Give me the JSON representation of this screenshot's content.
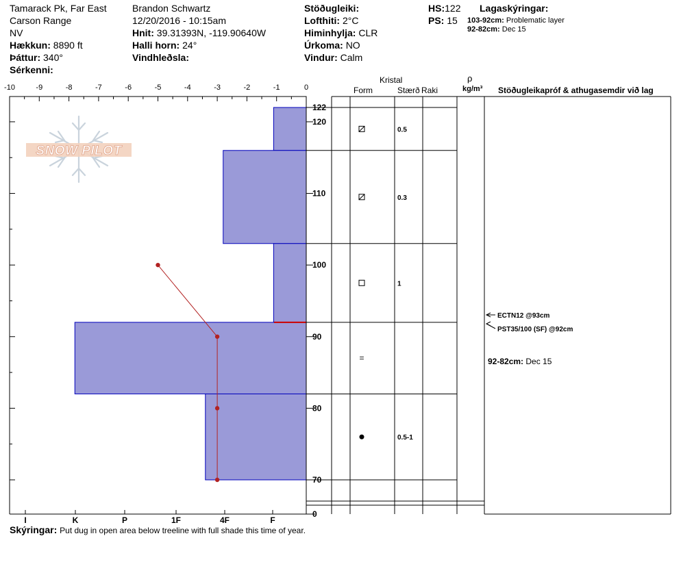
{
  "header": {
    "location": "Tamarack Pk, Far East",
    "range": "Carson Range",
    "state": "NV",
    "elevation_label": "Hækkun:",
    "elevation_value": "8890 ft",
    "aspect_label": "Þáttur:",
    "aspect_value": "340°",
    "features_label": "Sérkenni:",
    "observer": "Brandon Schwartz",
    "datetime": "12/20/2016 - 10:15am",
    "coords_label": "Hnit:",
    "coords_value": "39.31393N, -119.90640W",
    "slope_label": "Halli horn:",
    "slope_value": "24°",
    "wind_loading_label": "Vindhleðsla:",
    "stability_label": "Stöðugleiki:",
    "air_temp_label": "Lofthiti:",
    "air_temp_value": "2°C",
    "sky_label": "Himinhylja:",
    "sky_value": "CLR",
    "precip_label": "Úrkoma:",
    "precip_value": "NO",
    "wind_label": "Vindur:",
    "wind_value": "Calm",
    "hs_label": "HS:",
    "hs_value": "122",
    "ps_label": "PS:",
    "ps_value": "15",
    "layer_notes_title": "Lagaskýringar:",
    "layer_notes": [
      {
        "range": "103-92cm:",
        "text": "Problematic layer"
      },
      {
        "range": "92-82cm:",
        "text": "Dec 15"
      }
    ]
  },
  "logo_text": "SNOW PILOT",
  "table_headers": {
    "crystal": "Kristal",
    "form": "Form",
    "size": "Stærð",
    "moisture": "Raki",
    "rho": "ρ",
    "density_unit": "kg/m³",
    "tests": "Stöðugleikapróf & athugasemdir við lag"
  },
  "comment_block": {
    "range": "92-82cm:",
    "text": "Dec 15"
  },
  "footer": {
    "notes_label": "Skýringar:",
    "notes_text": "Put dug in open area below treeline with full shade this time of year."
  },
  "colors": {
    "hardness_fill": "#9a9ad8",
    "hardness_stroke": "#0000bb",
    "temp_line": "#b22222",
    "grid": "#000000"
  },
  "chart_data": {
    "type": "area",
    "temperature_axis": {
      "ticks": [
        "-10",
        "-9",
        "-8",
        "-7",
        "-6",
        "-5",
        "-4",
        "-3",
        "-2",
        "-1",
        "0"
      ],
      "range": [
        -10,
        0
      ]
    },
    "hardness_axis": {
      "ticks": [
        "I",
        "K",
        "P",
        "1F",
        "4F",
        "F"
      ],
      "range_units": [
        0,
        10
      ]
    },
    "depth_axis": {
      "range": [
        0,
        122
      ],
      "ticks": [
        "70",
        "80",
        "90",
        "100",
        "110",
        "120",
        "122",
        "0"
      ],
      "break_between": [
        70,
        0
      ]
    },
    "hardness_layers": [
      {
        "top": 122,
        "bottom": 116,
        "hardness": 1.1
      },
      {
        "top": 116,
        "bottom": 103,
        "hardness": 2.8
      },
      {
        "top": 103,
        "bottom": 92,
        "hardness": 1.1
      },
      {
        "top": 92,
        "bottom": 82,
        "hardness": 7.8
      },
      {
        "top": 82,
        "bottom": 70,
        "hardness": 3.4
      }
    ],
    "temperature_profile": [
      {
        "depth": 100,
        "temp": -5
      },
      {
        "depth": 90,
        "temp": -3
      },
      {
        "depth": 80,
        "temp": -3
      },
      {
        "depth": 70,
        "temp": -3
      }
    ],
    "weak_layer_depth": 92,
    "layer_details": [
      {
        "top": 122,
        "bottom": 116,
        "form": "decomposing",
        "size": "0.5"
      },
      {
        "top": 116,
        "bottom": 103,
        "form": "decomposing",
        "size": "0.3"
      },
      {
        "top": 103,
        "bottom": 92,
        "form": "faceted",
        "size": "1"
      },
      {
        "top": 92,
        "bottom": 82,
        "form": "=",
        "size": ""
      },
      {
        "top": 82,
        "bottom": 70,
        "form": "rounded",
        "size": "0.5-1"
      }
    ],
    "stability_tests": [
      {
        "label": "ECTN12 @93cm",
        "depth": 93
      },
      {
        "label": "PST35/100 (SF) @92cm",
        "depth": 92
      }
    ]
  }
}
